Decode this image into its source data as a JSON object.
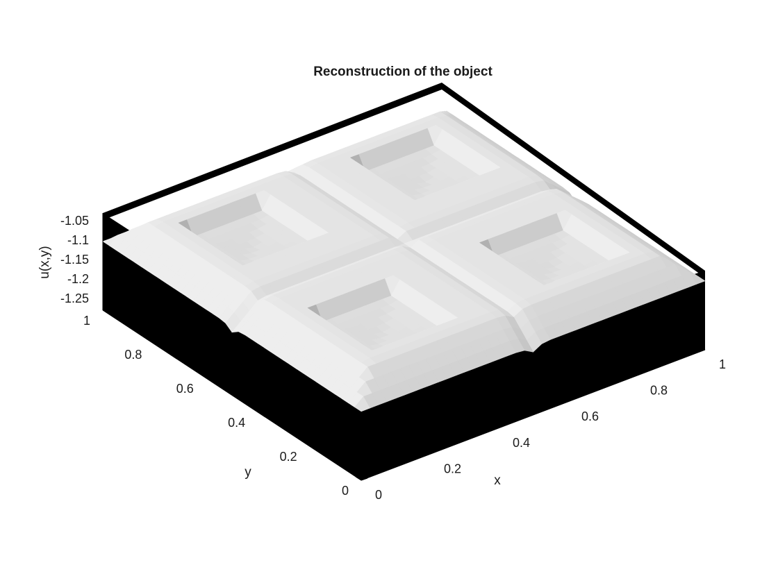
{
  "chart_data": {
    "type": "surface",
    "title": "Reconstruction of the object",
    "xlabel": "x",
    "ylabel": "y",
    "zlabel": "u(x,y)",
    "xlim": [
      0,
      1
    ],
    "ylim": [
      0,
      1
    ],
    "zlim": [
      -1.28,
      -1.03
    ],
    "x_ticks": [
      "0",
      "0.2",
      "0.4",
      "0.6",
      "0.8",
      "1"
    ],
    "y_ticks": [
      "0",
      "0.2",
      "0.4",
      "0.6",
      "0.8",
      "1"
    ],
    "z_ticks": [
      "-1.05",
      "-1.1",
      "-1.15",
      "-1.2",
      "-1.25"
    ],
    "colormap": "gray",
    "surface_description_values": {
      "frame_ridge_height": -1.05,
      "pocket_floor_height": -1.1,
      "edge_cusp_height": -1.28,
      "pockets_grid": [
        2,
        2
      ],
      "pocket_centers": [
        [
          0.25,
          0.25
        ],
        [
          0.75,
          0.25
        ],
        [
          0.25,
          0.75
        ],
        [
          0.75,
          0.75
        ]
      ]
    }
  }
}
